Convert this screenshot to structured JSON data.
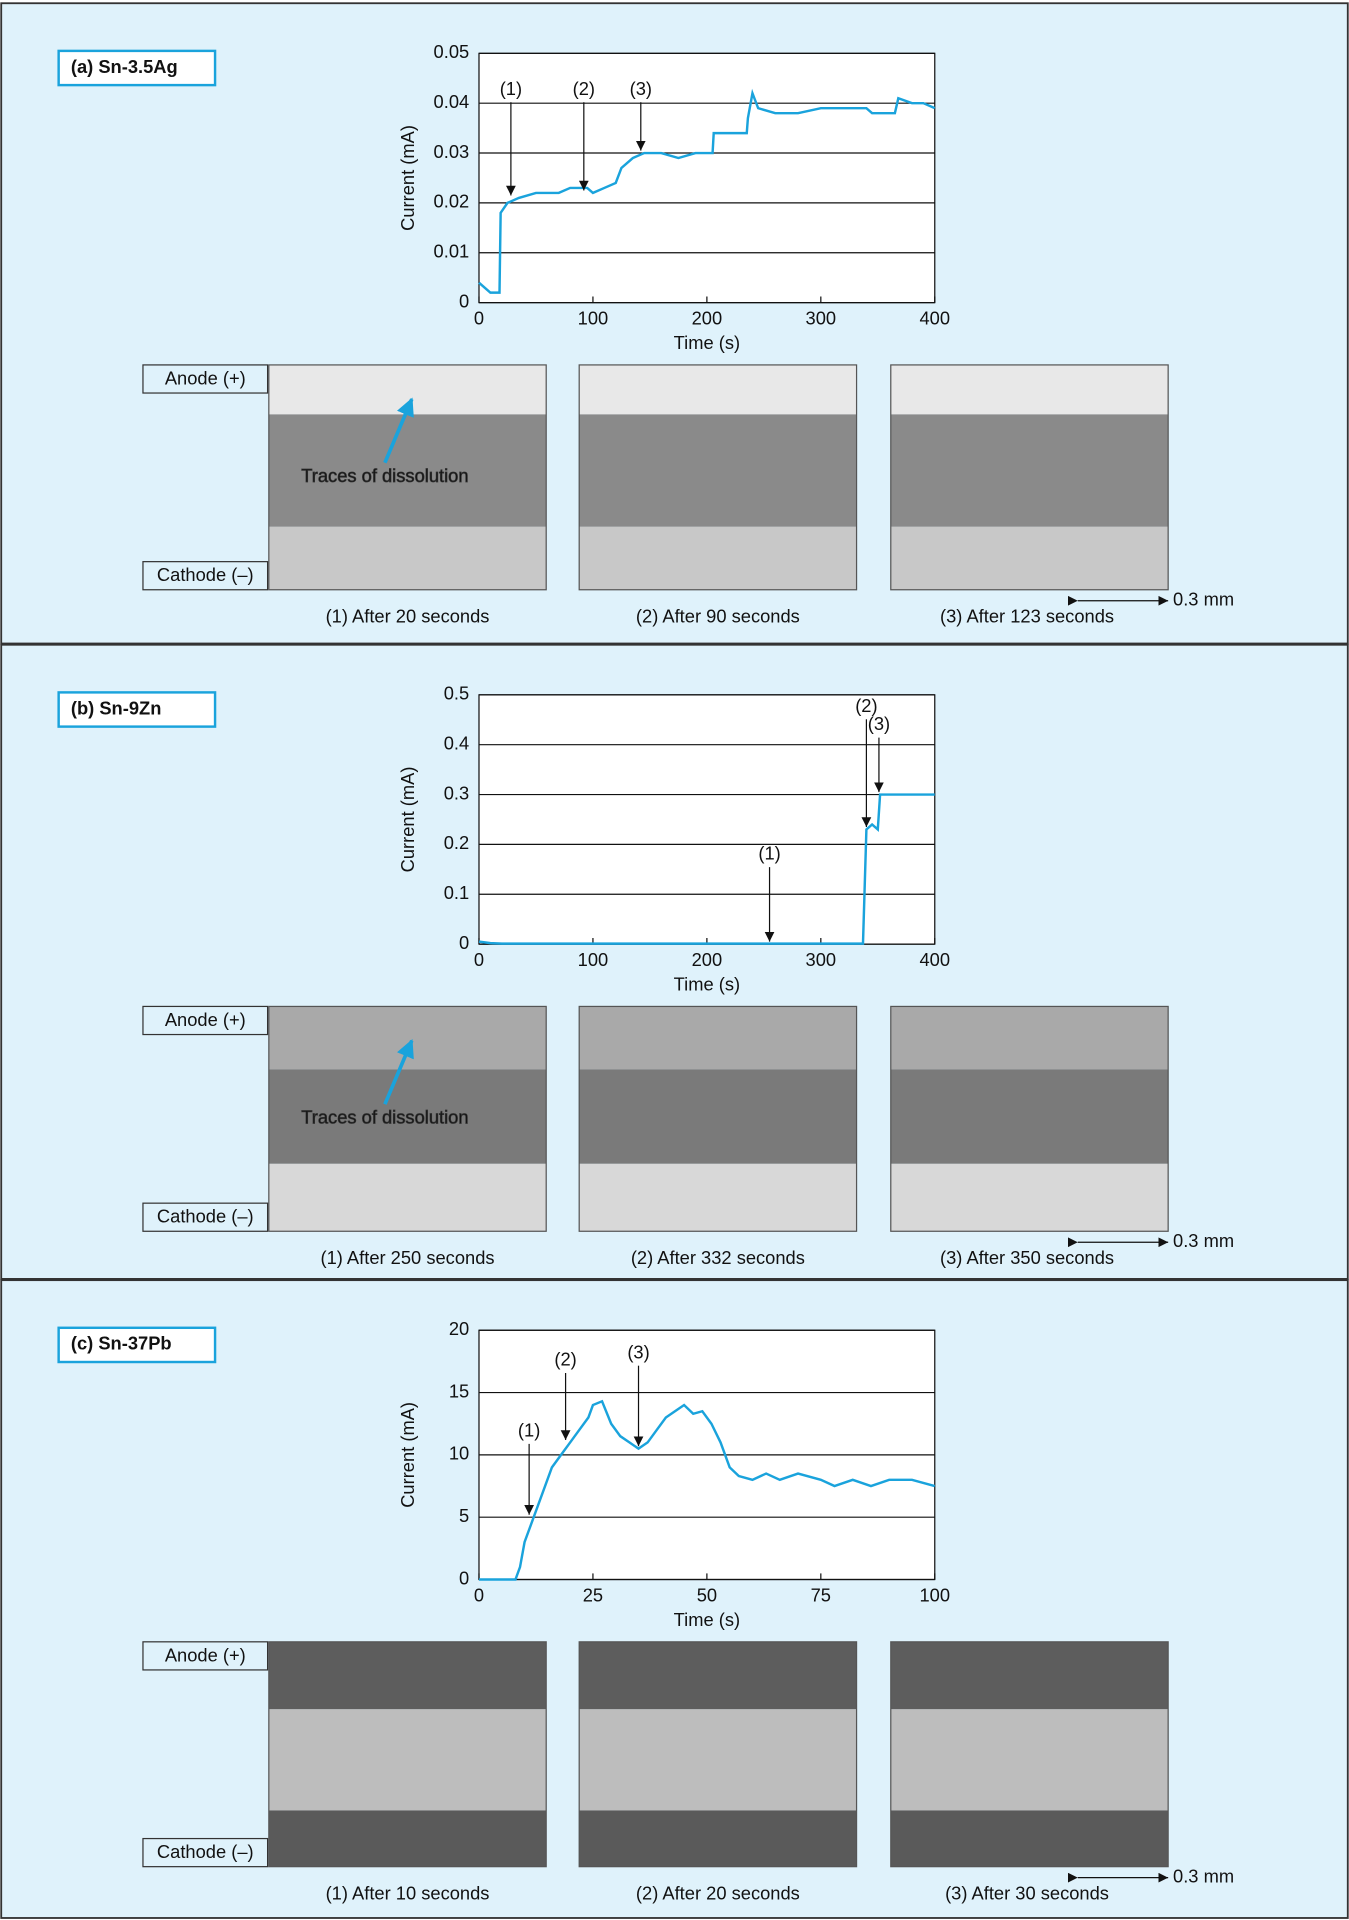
{
  "chart_data": [
    {
      "type": "line",
      "title": "(a) Sn-3.5Ag",
      "x_label": "Time (s)",
      "y_label": "Current (mA)",
      "color": "#1aa3dc",
      "x": [
        0,
        5,
        10,
        18,
        19,
        25,
        35,
        50,
        70,
        80,
        95,
        100,
        110,
        120,
        125,
        135,
        145,
        160,
        175,
        190,
        205,
        206,
        235,
        236,
        240,
        245,
        260,
        280,
        300,
        320,
        340,
        345,
        365,
        368,
        380,
        390,
        400
      ],
      "values": [
        0.004,
        0.003,
        0.002,
        0.002,
        0.018,
        0.02,
        0.021,
        0.022,
        0.022,
        0.023,
        0.023,
        0.022,
        0.023,
        0.024,
        0.027,
        0.029,
        0.03,
        0.03,
        0.029,
        0.03,
        0.03,
        0.034,
        0.034,
        0.037,
        0.042,
        0.039,
        0.038,
        0.038,
        0.039,
        0.039,
        0.039,
        0.038,
        0.038,
        0.041,
        0.04,
        0.04,
        0.039
      ],
      "xlim": [
        0,
        400
      ],
      "xticks": [
        0,
        100,
        200,
        300,
        400
      ],
      "ylim": [
        0,
        0.05
      ],
      "yticks": [
        0,
        0.01,
        0.02,
        0.03,
        0.04,
        0.05
      ],
      "grid": true,
      "markers": [
        {
          "label": "(1)",
          "x": 28,
          "y": 0.021
        },
        {
          "label": "(2)",
          "x": 92,
          "y": 0.022
        },
        {
          "label": "(3)",
          "x": 142,
          "y": 0.03
        }
      ],
      "electrode_labels": [
        "Anode (+)",
        "Cathode (–)"
      ],
      "callout": "Traces of dissolution",
      "captions": [
        "(1) After 20 seconds",
        "(2) After 90 seconds",
        "(3) After 123 seconds"
      ],
      "scale_label": "0.3 mm"
    },
    {
      "type": "line",
      "title": "(b) Sn-9Zn",
      "x_label": "Time (s)",
      "y_label": "Current (mA)",
      "color": "#1aa3dc",
      "x": [
        0,
        10,
        20,
        337,
        340,
        345,
        350,
        352,
        400
      ],
      "values": [
        0.005,
        0.002,
        0.001,
        0.001,
        0.23,
        0.24,
        0.23,
        0.3,
        0.3
      ],
      "xlim": [
        0,
        400
      ],
      "xticks": [
        0,
        100,
        200,
        300,
        400
      ],
      "ylim": [
        0,
        0.5
      ],
      "yticks": [
        0,
        0.1,
        0.2,
        0.3,
        0.4,
        0.5
      ],
      "grid": true,
      "markers": [
        {
          "label": "(1)",
          "x": 255,
          "y": 0
        },
        {
          "label": "(2)",
          "x": 340,
          "y": 0.23
        },
        {
          "label": "(3)",
          "x": 351,
          "y": 0.3
        }
      ],
      "electrode_labels": [
        "Anode (+)",
        "Cathode (–)"
      ],
      "callout": "Traces of dissolution",
      "captions": [
        "(1) After 250 seconds",
        "(2) After 332 seconds",
        "(3) After 350 seconds"
      ],
      "scale_label": "0.3 mm"
    },
    {
      "type": "line",
      "title": "(c) Sn-37Pb",
      "x_label": "Time (s)",
      "y_label": "Current (mA)",
      "color": "#1aa3dc",
      "x": [
        0,
        8,
        9,
        10,
        12,
        14,
        16,
        18,
        20,
        22,
        24,
        25,
        27,
        29,
        31,
        33,
        35,
        37,
        39,
        41,
        43,
        45,
        47,
        49,
        51,
        53,
        55,
        57,
        60,
        63,
        66,
        70,
        75,
        78,
        82,
        86,
        90,
        95,
        100
      ],
      "values": [
        0,
        0,
        1,
        3,
        5,
        7,
        9,
        10,
        11,
        12,
        13,
        14,
        14.3,
        12.5,
        11.5,
        11,
        10.5,
        11,
        12,
        13,
        13.5,
        14,
        13.3,
        13.5,
        12.5,
        11,
        9,
        8.3,
        8,
        8.5,
        8,
        8.5,
        8,
        7.5,
        8,
        7.5,
        8,
        8,
        7.5
      ],
      "xlim": [
        0,
        100
      ],
      "xticks": [
        0,
        25,
        50,
        75,
        100
      ],
      "ylim": [
        0,
        20
      ],
      "yticks": [
        0,
        5,
        10,
        15,
        20
      ],
      "grid": true,
      "markers": [
        {
          "label": "(1)",
          "x": 11,
          "y": 5
        },
        {
          "label": "(2)",
          "x": 19,
          "y": 11
        },
        {
          "label": "(3)",
          "x": 35,
          "y": 10.5
        }
      ],
      "electrode_labels": [
        "Anode (+)",
        "Cathode (–)"
      ],
      "captions": [
        "(1) After 10 seconds",
        "(2) After 20 seconds",
        "(3) After 30 seconds"
      ],
      "scale_label": "0.3 mm"
    }
  ]
}
